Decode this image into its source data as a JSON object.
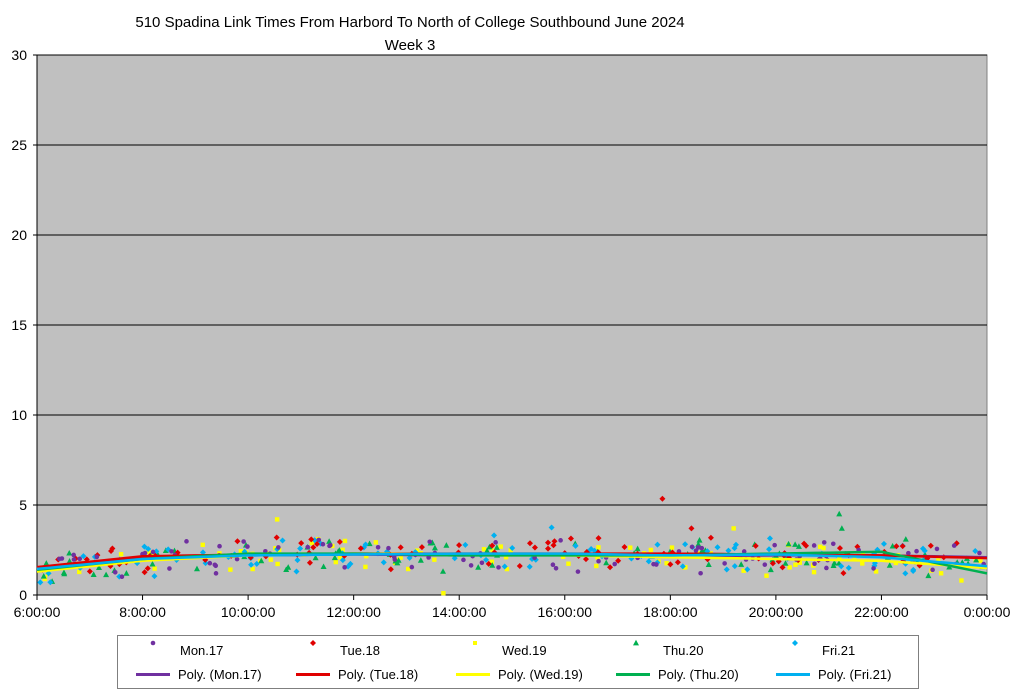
{
  "chart_data": {
    "type": "scatter",
    "title": "510 Spadina Link Times From Harbord To North of College Southbound June 2024",
    "subtitle": "Week 3",
    "xlabel": "",
    "ylabel": "",
    "xlim": [
      "6:00:00",
      "0:00:00"
    ],
    "ylim": [
      0,
      30
    ],
    "x_ticks": [
      "6:00:00",
      "8:00:00",
      "10:00:00",
      "12:00:00",
      "14:00:00",
      "16:00:00",
      "18:00:00",
      "20:00:00",
      "22:00:00",
      "0:00:00"
    ],
    "y_ticks": [
      "0",
      "5",
      "10",
      "15",
      "20",
      "25",
      "30"
    ],
    "grid": "horizontal",
    "plot_background": "#c0c0c0",
    "legend_position": "bottom",
    "series": [
      {
        "name": "Mon.17",
        "color": "#7030a0",
        "marker": "circle",
        "trend_name": "Poly. (Mon.17)",
        "trend": [
          [
            6,
            1.5
          ],
          [
            8,
            2.05
          ],
          [
            10,
            2.2
          ],
          [
            12,
            2.25
          ],
          [
            14,
            2.2
          ],
          [
            16,
            2.25
          ],
          [
            18,
            2.15
          ],
          [
            20,
            2.2
          ],
          [
            22,
            2.2
          ],
          [
            24,
            2.1
          ]
        ]
      },
      {
        "name": "Tue.18",
        "color": "#e00000",
        "marker": "diamond",
        "trend_name": "Poly. (Tue.18)",
        "trend": [
          [
            6,
            1.55
          ],
          [
            8,
            2.15
          ],
          [
            10,
            2.25
          ],
          [
            12,
            2.3
          ],
          [
            14,
            2.3
          ],
          [
            16,
            2.3
          ],
          [
            18,
            2.3
          ],
          [
            20,
            2.25
          ],
          [
            22,
            2.2
          ],
          [
            24,
            2.05
          ]
        ]
      },
      {
        "name": "Wed.19",
        "color": "#ffff00",
        "marker": "square",
        "trend_name": "Poly. (Wed.19)",
        "trend": [
          [
            6,
            1.3
          ],
          [
            8,
            1.9
          ],
          [
            10,
            2.2
          ],
          [
            12,
            2.3
          ],
          [
            14,
            2.25
          ],
          [
            16,
            2.2
          ],
          [
            18,
            2.1
          ],
          [
            20,
            2.0
          ],
          [
            22,
            1.9
          ],
          [
            24,
            1.5
          ]
        ]
      },
      {
        "name": "Thu.20",
        "color": "#00b050",
        "marker": "triangle",
        "trend_name": "Poly. (Thu.20)",
        "trend": [
          [
            6,
            1.4
          ],
          [
            8,
            2.0
          ],
          [
            10,
            2.3
          ],
          [
            12,
            2.3
          ],
          [
            14,
            2.2
          ],
          [
            16,
            2.2
          ],
          [
            18,
            2.2
          ],
          [
            20,
            2.3
          ],
          [
            22,
            2.4
          ],
          [
            24,
            1.2
          ]
        ]
      },
      {
        "name": "Fri.21",
        "color": "#00b0f0",
        "marker": "diamond",
        "trend_name": "Poly. (Fri.21)",
        "trend": [
          [
            6,
            1.45
          ],
          [
            8,
            2.0
          ],
          [
            10,
            2.2
          ],
          [
            12,
            2.25
          ],
          [
            14,
            2.3
          ],
          [
            16,
            2.3
          ],
          [
            18,
            2.2
          ],
          [
            20,
            2.25
          ],
          [
            22,
            2.1
          ],
          [
            24,
            1.6
          ]
        ]
      }
    ],
    "outliers": [
      {
        "series": "Tue.18",
        "x": 17.85,
        "y": 5.35
      },
      {
        "series": "Thu.20",
        "x": 21.2,
        "y": 4.5
      },
      {
        "series": "Thu.20",
        "x": 21.25,
        "y": 3.7
      },
      {
        "series": "Wed.19",
        "x": 10.55,
        "y": 4.2
      },
      {
        "series": "Wed.19",
        "x": 19.2,
        "y": 3.7
      },
      {
        "series": "Fri.21",
        "x": 15.75,
        "y": 3.75
      },
      {
        "series": "Tue.18",
        "x": 18.4,
        "y": 3.7
      },
      {
        "series": "Wed.19",
        "x": 13.7,
        "y": 0.1
      }
    ]
  }
}
